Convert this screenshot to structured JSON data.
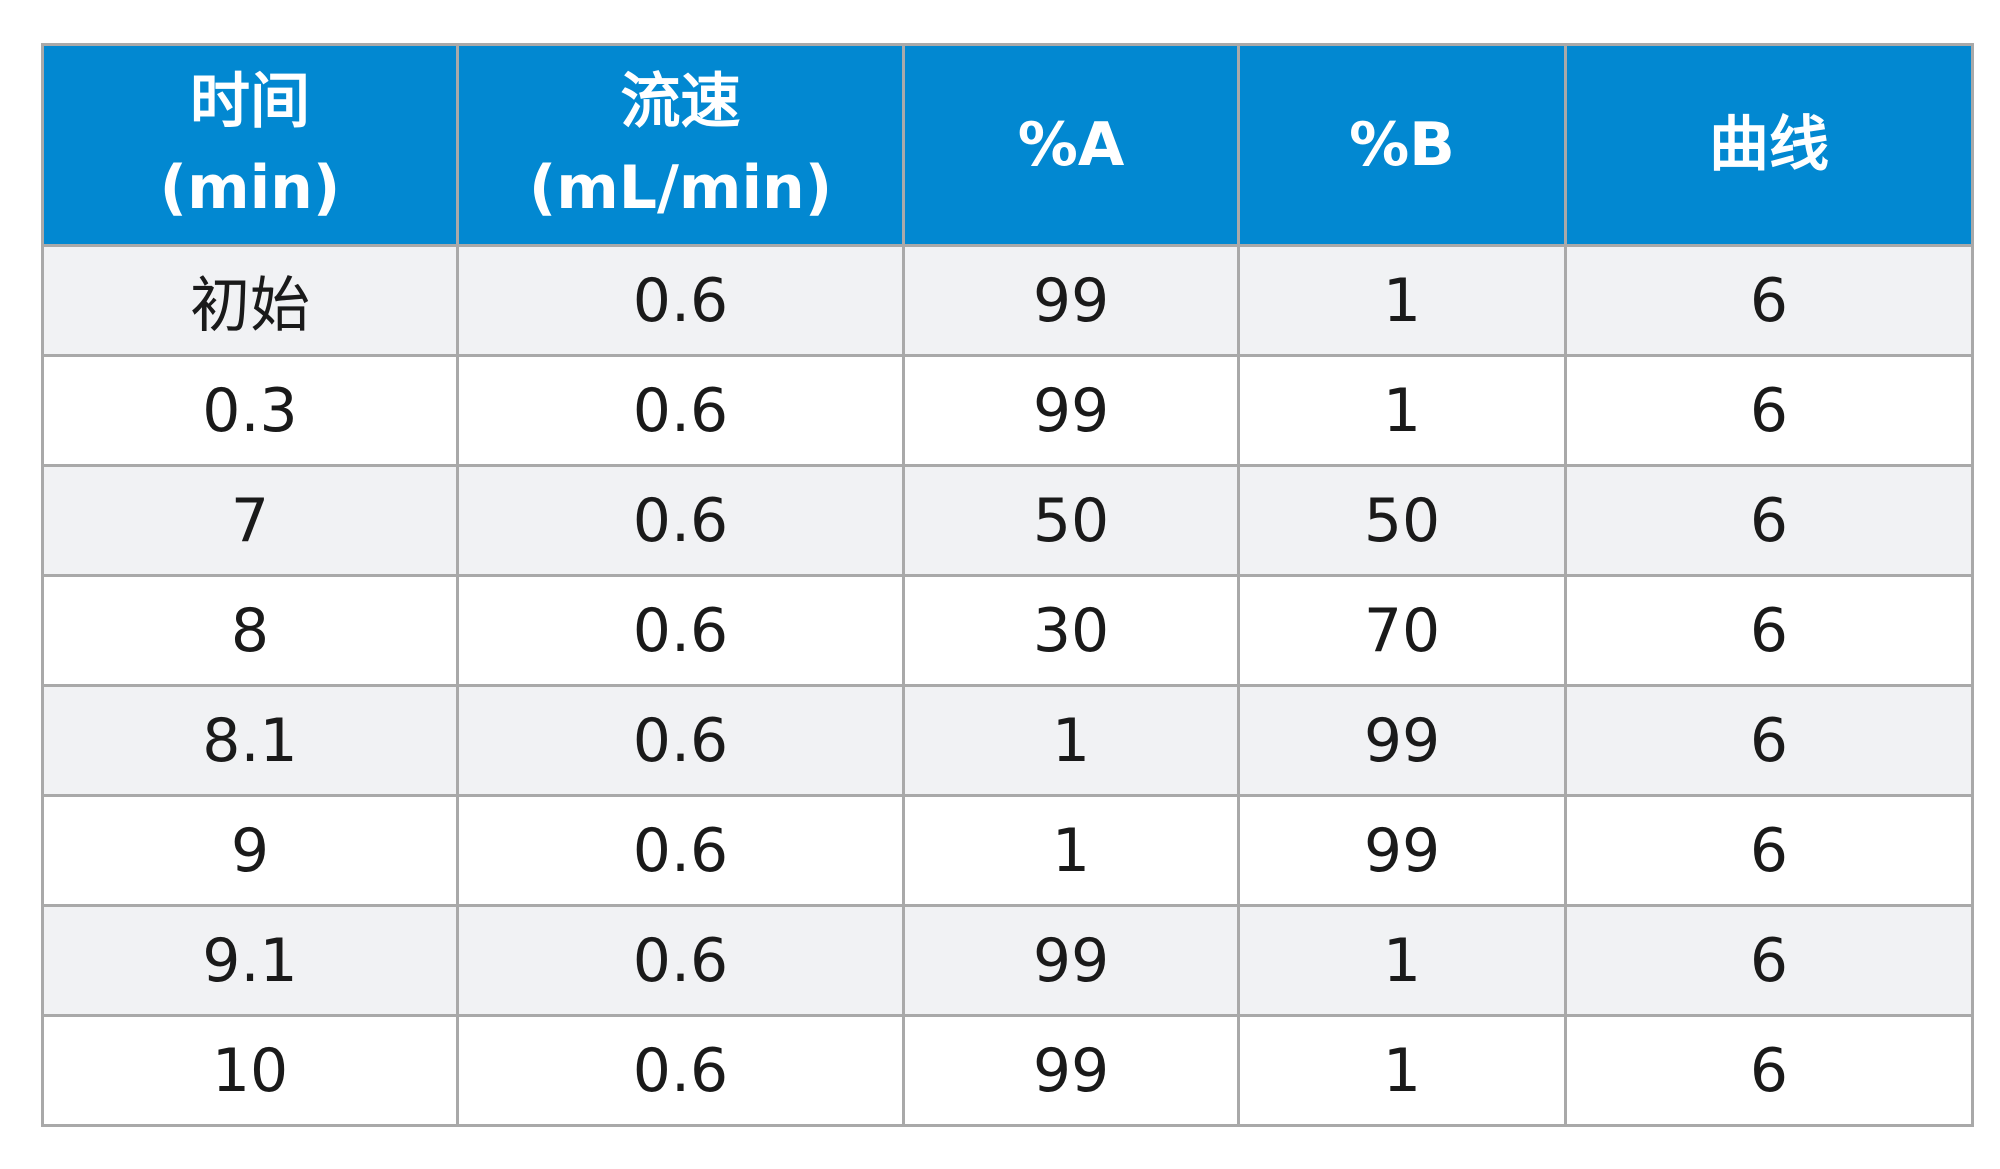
{
  "colors": {
    "header_bg": "#0288d1",
    "header_text": "#ffffff",
    "row_alt_bg": "#f1f2f4",
    "row_bg": "#ffffff",
    "border": "#a9a9a9",
    "cell_text": "#1a1a1a"
  },
  "table": {
    "headers": [
      {
        "line1": "时间",
        "line2": "(min)"
      },
      {
        "line1": "流速",
        "line2": "(mL/min)"
      },
      {
        "line1": "%A",
        "line2": ""
      },
      {
        "line1": "%B",
        "line2": ""
      },
      {
        "line1": "曲线",
        "line2": ""
      }
    ],
    "rows": [
      [
        "初始",
        "0.6",
        "99",
        "1",
        "6"
      ],
      [
        "0.3",
        "0.6",
        "99",
        "1",
        "6"
      ],
      [
        "7",
        "0.6",
        "50",
        "50",
        "6"
      ],
      [
        "8",
        "0.6",
        "30",
        "70",
        "6"
      ],
      [
        "8.1",
        "0.6",
        "1",
        "99",
        "6"
      ],
      [
        "9",
        "0.6",
        "1",
        "99",
        "6"
      ],
      [
        "9.1",
        "0.6",
        "99",
        "1",
        "6"
      ],
      [
        "10",
        "0.6",
        "99",
        "1",
        "6"
      ]
    ]
  }
}
